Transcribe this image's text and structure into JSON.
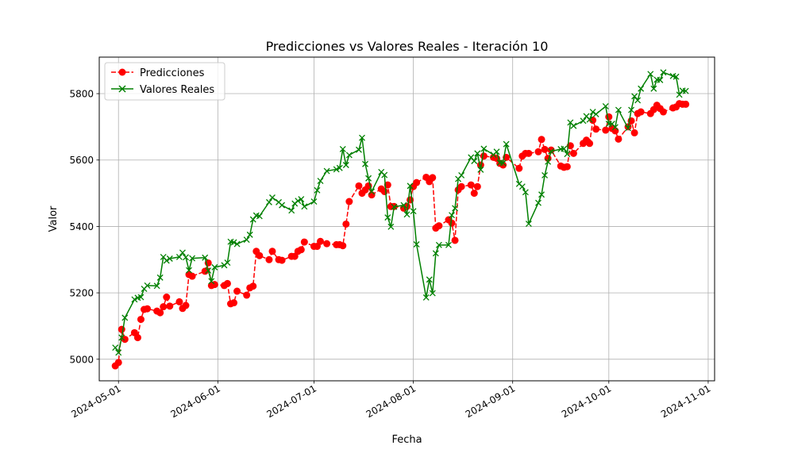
{
  "chart_data": {
    "type": "line",
    "title": "Predicciones vs Valores Reales - Iteración 10",
    "xlabel": "Fecha",
    "ylabel": "Valor",
    "x_range": [
      "2024-04-25",
      "2024-11-03"
    ],
    "ylim": [
      4935,
      5910
    ],
    "x_ticks": [
      "2024-05-01",
      "2024-06-01",
      "2024-07-01",
      "2024-08-01",
      "2024-09-01",
      "2024-10-01",
      "2024-11-01"
    ],
    "y_ticks": [
      5000,
      5200,
      5400,
      5600,
      5800
    ],
    "grid": true,
    "legend": "top-left",
    "series": [
      {
        "name": "Predicciones",
        "color": "#ff0000",
        "linestyle": "dashed",
        "marker": "circle",
        "points": [
          [
            "2024-04-30",
            4980
          ],
          [
            "2024-05-01",
            4990
          ],
          [
            "2024-05-02",
            5090
          ],
          [
            "2024-05-03",
            5060
          ],
          [
            "2024-05-06",
            5080
          ],
          [
            "2024-05-07",
            5065
          ],
          [
            "2024-05-08",
            5120
          ],
          [
            "2024-05-09",
            5150
          ],
          [
            "2024-05-10",
            5152
          ],
          [
            "2024-05-13",
            5145
          ],
          [
            "2024-05-14",
            5140
          ],
          [
            "2024-05-15",
            5158
          ],
          [
            "2024-05-16",
            5187
          ],
          [
            "2024-05-17",
            5160
          ],
          [
            "2024-05-20",
            5173
          ],
          [
            "2024-05-21",
            5153
          ],
          [
            "2024-05-22",
            5162
          ],
          [
            "2024-05-23",
            5255
          ],
          [
            "2024-05-24",
            5250
          ],
          [
            "2024-05-28",
            5265
          ],
          [
            "2024-05-29",
            5290
          ],
          [
            "2024-05-30",
            5222
          ],
          [
            "2024-05-31",
            5225
          ],
          [
            "2024-06-03",
            5222
          ],
          [
            "2024-06-04",
            5228
          ],
          [
            "2024-06-05",
            5167
          ],
          [
            "2024-06-06",
            5170
          ],
          [
            "2024-06-07",
            5205
          ],
          [
            "2024-06-10",
            5193
          ],
          [
            "2024-06-11",
            5215
          ],
          [
            "2024-06-12",
            5220
          ],
          [
            "2024-06-13",
            5325
          ],
          [
            "2024-06-14",
            5312
          ],
          [
            "2024-06-17",
            5300
          ],
          [
            "2024-06-18",
            5325
          ],
          [
            "2024-06-20",
            5300
          ],
          [
            "2024-06-21",
            5298
          ],
          [
            "2024-06-24",
            5310
          ],
          [
            "2024-06-25",
            5310
          ],
          [
            "2024-06-26",
            5325
          ],
          [
            "2024-06-27",
            5330
          ],
          [
            "2024-06-28",
            5353
          ],
          [
            "2024-07-01",
            5340
          ],
          [
            "2024-07-02",
            5340
          ],
          [
            "2024-07-03",
            5355
          ],
          [
            "2024-07-05",
            5348
          ],
          [
            "2024-07-08",
            5345
          ],
          [
            "2024-07-09",
            5345
          ],
          [
            "2024-07-10",
            5342
          ],
          [
            "2024-07-11",
            5407
          ],
          [
            "2024-07-12",
            5475
          ],
          [
            "2024-07-15",
            5522
          ],
          [
            "2024-07-16",
            5500
          ],
          [
            "2024-07-17",
            5510
          ],
          [
            "2024-07-18",
            5522
          ],
          [
            "2024-07-19",
            5495
          ],
          [
            "2024-07-22",
            5513
          ],
          [
            "2024-07-23",
            5505
          ],
          [
            "2024-07-24",
            5525
          ],
          [
            "2024-07-25",
            5460
          ],
          [
            "2024-07-26",
            5460
          ],
          [
            "2024-07-29",
            5455
          ],
          [
            "2024-07-30",
            5460
          ],
          [
            "2024-07-31",
            5480
          ],
          [
            "2024-08-01",
            5520
          ],
          [
            "2024-08-02",
            5532
          ],
          [
            "2024-08-05",
            5548
          ],
          [
            "2024-08-06",
            5535
          ],
          [
            "2024-08-07",
            5547
          ],
          [
            "2024-08-08",
            5395
          ],
          [
            "2024-08-09",
            5402
          ],
          [
            "2024-08-12",
            5420
          ],
          [
            "2024-08-13",
            5410
          ],
          [
            "2024-08-14",
            5358
          ],
          [
            "2024-08-15",
            5510
          ],
          [
            "2024-08-16",
            5520
          ],
          [
            "2024-08-19",
            5525
          ],
          [
            "2024-08-20",
            5500
          ],
          [
            "2024-08-21",
            5520
          ],
          [
            "2024-08-22",
            5585
          ],
          [
            "2024-08-23",
            5612
          ],
          [
            "2024-08-26",
            5608
          ],
          [
            "2024-08-27",
            5605
          ],
          [
            "2024-08-28",
            5590
          ],
          [
            "2024-08-29",
            5585
          ],
          [
            "2024-08-30",
            5608
          ],
          [
            "2024-09-03",
            5575
          ],
          [
            "2024-09-04",
            5612
          ],
          [
            "2024-09-05",
            5620
          ],
          [
            "2024-09-06",
            5620
          ],
          [
            "2024-09-09",
            5625
          ],
          [
            "2024-09-10",
            5662
          ],
          [
            "2024-09-11",
            5632
          ],
          [
            "2024-09-12",
            5605
          ],
          [
            "2024-09-13",
            5630
          ],
          [
            "2024-09-16",
            5582
          ],
          [
            "2024-09-17",
            5578
          ],
          [
            "2024-09-18",
            5580
          ],
          [
            "2024-09-19",
            5643
          ],
          [
            "2024-09-20",
            5620
          ],
          [
            "2024-09-23",
            5650
          ],
          [
            "2024-09-24",
            5660
          ],
          [
            "2024-09-25",
            5650
          ],
          [
            "2024-09-26",
            5720
          ],
          [
            "2024-09-27",
            5693
          ],
          [
            "2024-09-30",
            5690
          ],
          [
            "2024-10-01",
            5730
          ],
          [
            "2024-10-02",
            5695
          ],
          [
            "2024-10-03",
            5688
          ],
          [
            "2024-10-04",
            5663
          ],
          [
            "2024-10-07",
            5700
          ],
          [
            "2024-10-08",
            5718
          ],
          [
            "2024-10-09",
            5682
          ],
          [
            "2024-10-10",
            5740
          ],
          [
            "2024-10-11",
            5745
          ],
          [
            "2024-10-14",
            5740
          ],
          [
            "2024-10-15",
            5752
          ],
          [
            "2024-10-16",
            5765
          ],
          [
            "2024-10-17",
            5755
          ],
          [
            "2024-10-18",
            5745
          ],
          [
            "2024-10-21",
            5757
          ],
          [
            "2024-10-22",
            5760
          ],
          [
            "2024-10-23",
            5770
          ],
          [
            "2024-10-24",
            5768
          ],
          [
            "2024-10-25",
            5768
          ]
        ]
      },
      {
        "name": "Valores Reales",
        "color": "#008000",
        "linestyle": "solid",
        "marker": "x",
        "points": [
          [
            "2024-04-30",
            5035
          ],
          [
            "2024-05-01",
            5020
          ],
          [
            "2024-05-02",
            5065
          ],
          [
            "2024-05-03",
            5125
          ],
          [
            "2024-05-06",
            5180
          ],
          [
            "2024-05-07",
            5185
          ],
          [
            "2024-05-08",
            5187
          ],
          [
            "2024-05-09",
            5212
          ],
          [
            "2024-05-10",
            5222
          ],
          [
            "2024-05-13",
            5221
          ],
          [
            "2024-05-14",
            5246
          ],
          [
            "2024-05-15",
            5308
          ],
          [
            "2024-05-16",
            5297
          ],
          [
            "2024-05-17",
            5303
          ],
          [
            "2024-05-20",
            5308
          ],
          [
            "2024-05-21",
            5321
          ],
          [
            "2024-05-22",
            5307
          ],
          [
            "2024-05-23",
            5268
          ],
          [
            "2024-05-24",
            5304
          ],
          [
            "2024-05-28",
            5306
          ],
          [
            "2024-05-29",
            5267
          ],
          [
            "2024-05-30",
            5235
          ],
          [
            "2024-05-31",
            5277
          ],
          [
            "2024-06-03",
            5283
          ],
          [
            "2024-06-04",
            5291
          ],
          [
            "2024-06-05",
            5354
          ],
          [
            "2024-06-06",
            5352
          ],
          [
            "2024-06-07",
            5347
          ],
          [
            "2024-06-10",
            5360
          ],
          [
            "2024-06-11",
            5375
          ],
          [
            "2024-06-12",
            5421
          ],
          [
            "2024-06-13",
            5433
          ],
          [
            "2024-06-14",
            5431
          ],
          [
            "2024-06-17",
            5473
          ],
          [
            "2024-06-18",
            5487
          ],
          [
            "2024-06-20",
            5473
          ],
          [
            "2024-06-21",
            5464
          ],
          [
            "2024-06-24",
            5448
          ],
          [
            "2024-06-25",
            5469
          ],
          [
            "2024-06-26",
            5477
          ],
          [
            "2024-06-27",
            5482
          ],
          [
            "2024-06-28",
            5460
          ],
          [
            "2024-07-01",
            5475
          ],
          [
            "2024-07-02",
            5509
          ],
          [
            "2024-07-03",
            5537
          ],
          [
            "2024-07-05",
            5567
          ],
          [
            "2024-07-08",
            5572
          ],
          [
            "2024-07-09",
            5576
          ],
          [
            "2024-07-10",
            5633
          ],
          [
            "2024-07-11",
            5585
          ],
          [
            "2024-07-12",
            5615
          ],
          [
            "2024-07-15",
            5631
          ],
          [
            "2024-07-16",
            5667
          ],
          [
            "2024-07-17",
            5588
          ],
          [
            "2024-07-18",
            5545
          ],
          [
            "2024-07-19",
            5505
          ],
          [
            "2024-07-22",
            5564
          ],
          [
            "2024-07-23",
            5555
          ],
          [
            "2024-07-24",
            5427
          ],
          [
            "2024-07-25",
            5399
          ],
          [
            "2024-07-26",
            5459
          ],
          [
            "2024-07-29",
            5464
          ],
          [
            "2024-07-30",
            5436
          ],
          [
            "2024-07-31",
            5522
          ],
          [
            "2024-08-01",
            5446
          ],
          [
            "2024-08-02",
            5346
          ],
          [
            "2024-08-05",
            5186
          ],
          [
            "2024-08-06",
            5240
          ],
          [
            "2024-08-07",
            5199
          ],
          [
            "2024-08-08",
            5319
          ],
          [
            "2024-08-09",
            5344
          ],
          [
            "2024-08-12",
            5344
          ],
          [
            "2024-08-13",
            5434
          ],
          [
            "2024-08-14",
            5455
          ],
          [
            "2024-08-15",
            5543
          ],
          [
            "2024-08-16",
            5554
          ],
          [
            "2024-08-19",
            5608
          ],
          [
            "2024-08-20",
            5597
          ],
          [
            "2024-08-21",
            5620
          ],
          [
            "2024-08-22",
            5571
          ],
          [
            "2024-08-23",
            5634
          ],
          [
            "2024-08-26",
            5616
          ],
          [
            "2024-08-27",
            5625
          ],
          [
            "2024-08-28",
            5592
          ],
          [
            "2024-08-29",
            5591
          ],
          [
            "2024-08-30",
            5648
          ],
          [
            "2024-09-03",
            5528
          ],
          [
            "2024-09-04",
            5520
          ],
          [
            "2024-09-05",
            5503
          ],
          [
            "2024-09-06",
            5408
          ],
          [
            "2024-09-09",
            5471
          ],
          [
            "2024-09-10",
            5496
          ],
          [
            "2024-09-11",
            5554
          ],
          [
            "2024-09-12",
            5595
          ],
          [
            "2024-09-13",
            5626
          ],
          [
            "2024-09-16",
            5633
          ],
          [
            "2024-09-17",
            5634
          ],
          [
            "2024-09-18",
            5618
          ],
          [
            "2024-09-19",
            5713
          ],
          [
            "2024-09-20",
            5703
          ],
          [
            "2024-09-23",
            5718
          ],
          [
            "2024-09-24",
            5732
          ],
          [
            "2024-09-25",
            5722
          ],
          [
            "2024-09-26",
            5745
          ],
          [
            "2024-09-27",
            5738
          ],
          [
            "2024-09-30",
            5762
          ],
          [
            "2024-10-01",
            5709
          ],
          [
            "2024-10-02",
            5709
          ],
          [
            "2024-10-03",
            5699
          ],
          [
            "2024-10-04",
            5751
          ],
          [
            "2024-10-07",
            5696
          ],
          [
            "2024-10-08",
            5751
          ],
          [
            "2024-10-09",
            5792
          ],
          [
            "2024-10-10",
            5780
          ],
          [
            "2024-10-11",
            5815
          ],
          [
            "2024-10-14",
            5859
          ],
          [
            "2024-10-15",
            5815
          ],
          [
            "2024-10-16",
            5842
          ],
          [
            "2024-10-17",
            5841
          ],
          [
            "2024-10-18",
            5864
          ],
          [
            "2024-10-21",
            5853
          ],
          [
            "2024-10-22",
            5851
          ],
          [
            "2024-10-23",
            5797
          ],
          [
            "2024-10-24",
            5809
          ],
          [
            "2024-10-25",
            5808
          ]
        ]
      }
    ]
  }
}
